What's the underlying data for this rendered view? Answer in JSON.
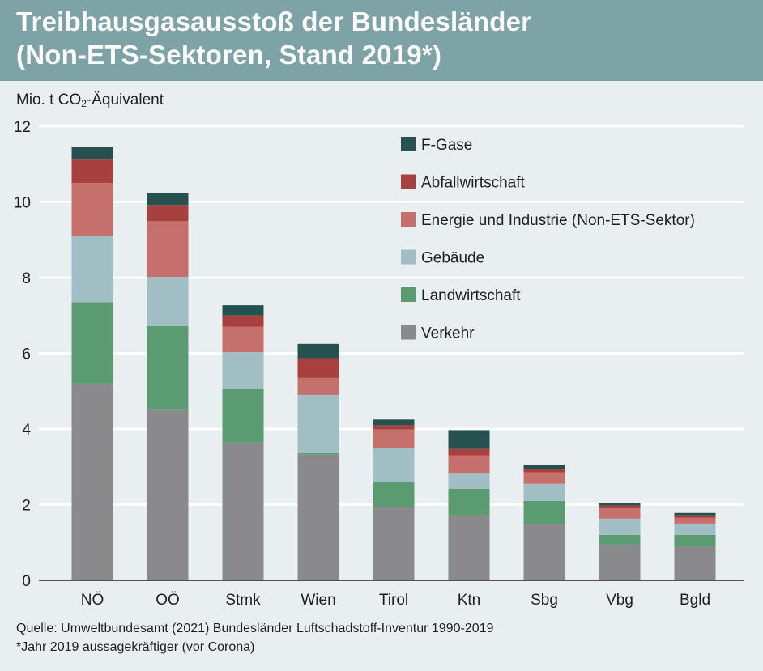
{
  "title": {
    "line1": "Treibhausgasausstoß der Bundesländer",
    "line2": "(Non-ETS-Sektoren, Stand 2019*)"
  },
  "axis": {
    "unit_prefix": "Mio. t CO",
    "unit_sub": "2",
    "unit_suffix": "-Äquivalent"
  },
  "footer": {
    "source": "Quelle: Umweltbundesamt (2021) Bundesländer Luftschadstoff-Inventur 1990-2019",
    "note": "*Jahr 2019 aussagekräftiger (vor Corona)"
  },
  "chart_data": {
    "type": "bar",
    "stacked": true,
    "categories": [
      "NÖ",
      "OÖ",
      "Stmk",
      "Wien",
      "Tirol",
      "Ktn",
      "Sbg",
      "Vbg",
      "Bgld"
    ],
    "ylim": [
      0,
      12
    ],
    "yticks": [
      0,
      2,
      4,
      6,
      8,
      10,
      12
    ],
    "grid": true,
    "legend_position": "top-right",
    "series": [
      {
        "name": "Verkehr",
        "color": "#8a898b",
        "values": [
          5.2,
          4.52,
          3.64,
          3.32,
          1.94,
          1.72,
          1.48,
          0.95,
          0.92
        ]
      },
      {
        "name": "Landwirtschaft",
        "color": "#5b9b72",
        "values": [
          2.15,
          2.2,
          1.43,
          0.04,
          0.67,
          0.7,
          0.62,
          0.25,
          0.28
        ]
      },
      {
        "name": "Gebäude",
        "color": "#a0bec3",
        "values": [
          1.75,
          1.3,
          0.96,
          1.54,
          0.88,
          0.42,
          0.45,
          0.43,
          0.3
        ]
      },
      {
        "name": "Energie und Industrie (Non-ETS-Sektor)",
        "color": "#c6706d",
        "values": [
          1.4,
          1.47,
          0.67,
          0.45,
          0.5,
          0.46,
          0.3,
          0.27,
          0.15
        ]
      },
      {
        "name": "Abfallwirtschaft",
        "color": "#a8403f",
        "values": [
          0.62,
          0.43,
          0.3,
          0.52,
          0.11,
          0.17,
          0.1,
          0.08,
          0.07
        ]
      },
      {
        "name": "F-Gase",
        "color": "#25514f",
        "values": [
          0.33,
          0.31,
          0.27,
          0.38,
          0.15,
          0.5,
          0.1,
          0.07,
          0.06
        ]
      }
    ]
  }
}
